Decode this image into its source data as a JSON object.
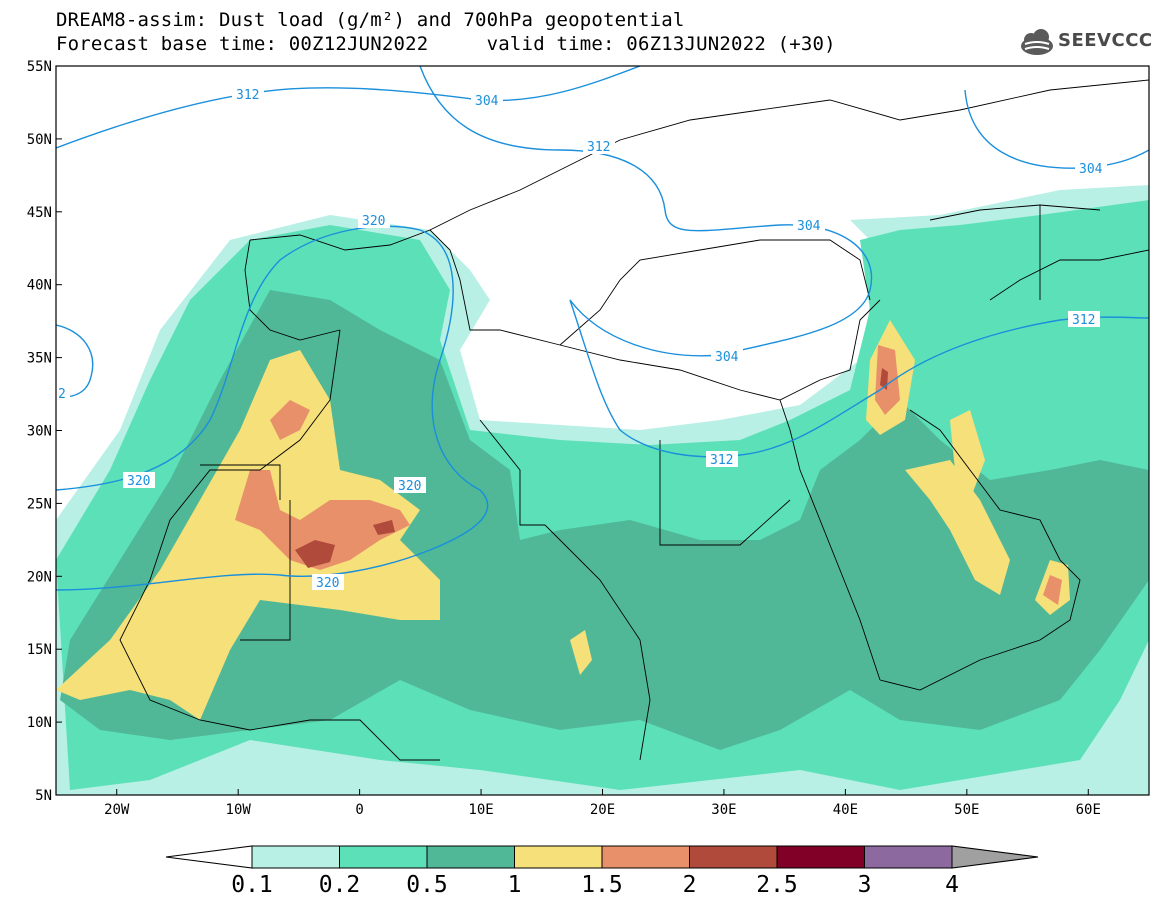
{
  "title_line1": "DREAM8-assim: Dust load (g/m²) and 700hPa geopotential",
  "title_line2": "Forecast base time: 00Z12JUN2022     valid time: 06Z13JUN2022 (+30)",
  "logo": {
    "icon": "cloud-icon",
    "text": "SEEVCCC"
  },
  "map": {
    "lon_range": [
      -25,
      65
    ],
    "lat_range": [
      5,
      55
    ],
    "lat_ticks": [
      "55N",
      "50N",
      "45N",
      "40N",
      "35N",
      "30N",
      "25N",
      "20N",
      "15N",
      "10N",
      "5N"
    ],
    "lon_ticks": [
      "20W",
      "10W",
      "0",
      "10E",
      "20E",
      "30E",
      "40E",
      "50E",
      "60E"
    ]
  },
  "contour_labels": [
    "304",
    "312",
    "320",
    "304",
    "312",
    "304",
    "320",
    "2",
    "320",
    "320",
    "312",
    "304",
    "312",
    "304"
  ],
  "colorbar": {
    "labels": [
      "0.1",
      "0.2",
      "0.5",
      "1",
      "1.5",
      "2",
      "2.5",
      "3",
      "4"
    ],
    "colors": [
      "#b8f0e6",
      "#5ce0b8",
      "#50b896",
      "#f5e07a",
      "#e8906a",
      "#b04a3a",
      "#800028",
      "#8c6aa0",
      "#a0a0a0"
    ]
  }
}
